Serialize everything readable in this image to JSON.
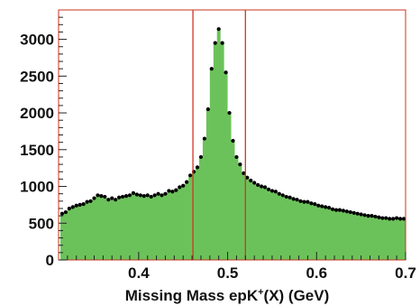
{
  "chart_data": {
    "type": "bar",
    "xlabel": "Missing Mass epK+(X) (GeV)",
    "xlabel_parts": {
      "before": "Missing Mass epK",
      "sup": "+",
      "after": "(X) (GeV)"
    },
    "ylabel": "",
    "xlim": [
      0.31,
      0.7
    ],
    "ylim": [
      0,
      3400
    ],
    "x_ticks": [
      "0.4",
      "0.5",
      "0.6",
      "0.7"
    ],
    "x_tick_values": [
      0.4,
      0.5,
      0.6,
      0.7
    ],
    "y_ticks": [
      "0",
      "500",
      "1000",
      "1500",
      "2000",
      "2500",
      "3000"
    ],
    "y_tick_values": [
      0,
      500,
      1000,
      1500,
      2000,
      2500,
      3000
    ],
    "cut_lines": [
      0.461,
      0.52
    ],
    "series": [
      {
        "bin_width": 0.004,
        "x": [
          0.314,
          0.318,
          0.322,
          0.326,
          0.33,
          0.334,
          0.338,
          0.342,
          0.346,
          0.35,
          0.354,
          0.358,
          0.362,
          0.366,
          0.37,
          0.374,
          0.378,
          0.382,
          0.386,
          0.39,
          0.394,
          0.398,
          0.402,
          0.406,
          0.41,
          0.414,
          0.418,
          0.422,
          0.426,
          0.43,
          0.434,
          0.438,
          0.442,
          0.446,
          0.45,
          0.454,
          0.458,
          0.462,
          0.466,
          0.47,
          0.474,
          0.478,
          0.482,
          0.486,
          0.49,
          0.494,
          0.498,
          0.502,
          0.506,
          0.51,
          0.514,
          0.518,
          0.522,
          0.526,
          0.53,
          0.534,
          0.538,
          0.542,
          0.546,
          0.55,
          0.554,
          0.558,
          0.562,
          0.566,
          0.57,
          0.574,
          0.578,
          0.582,
          0.586,
          0.59,
          0.594,
          0.598,
          0.602,
          0.606,
          0.61,
          0.614,
          0.618,
          0.622,
          0.626,
          0.63,
          0.634,
          0.638,
          0.642,
          0.646,
          0.65,
          0.654,
          0.658,
          0.662,
          0.666,
          0.67,
          0.674,
          0.678,
          0.682,
          0.686,
          0.69,
          0.694,
          0.698
        ],
        "values": [
          630,
          650,
          700,
          720,
          740,
          750,
          760,
          790,
          800,
          840,
          880,
          870,
          860,
          820,
          840,
          820,
          850,
          860,
          870,
          880,
          910,
          890,
          880,
          870,
          880,
          860,
          880,
          900,
          880,
          900,
          940,
          930,
          950,
          990,
          1010,
          1060,
          1150,
          1200,
          1260,
          1400,
          1650,
          2050,
          2600,
          2950,
          3140,
          2950,
          2550,
          2000,
          1620,
          1400,
          1300,
          1180,
          1120,
          1080,
          1050,
          1020,
          1000,
          990,
          960,
          940,
          930,
          900,
          880,
          860,
          850,
          830,
          820,
          800,
          790,
          790,
          770,
          760,
          740,
          730,
          720,
          710,
          690,
          680,
          680,
          670,
          660,
          650,
          640,
          630,
          620,
          610,
          600,
          600,
          590,
          580,
          570,
          570,
          560,
          560,
          570,
          560,
          560
        ],
        "color": "#6cc25a",
        "marker_color": "#000000"
      }
    ],
    "grid": false,
    "colors": {
      "frame": "#cc3322",
      "cut_line": "#d03525",
      "fill": "#6cc25a",
      "marker": "#000000"
    }
  }
}
